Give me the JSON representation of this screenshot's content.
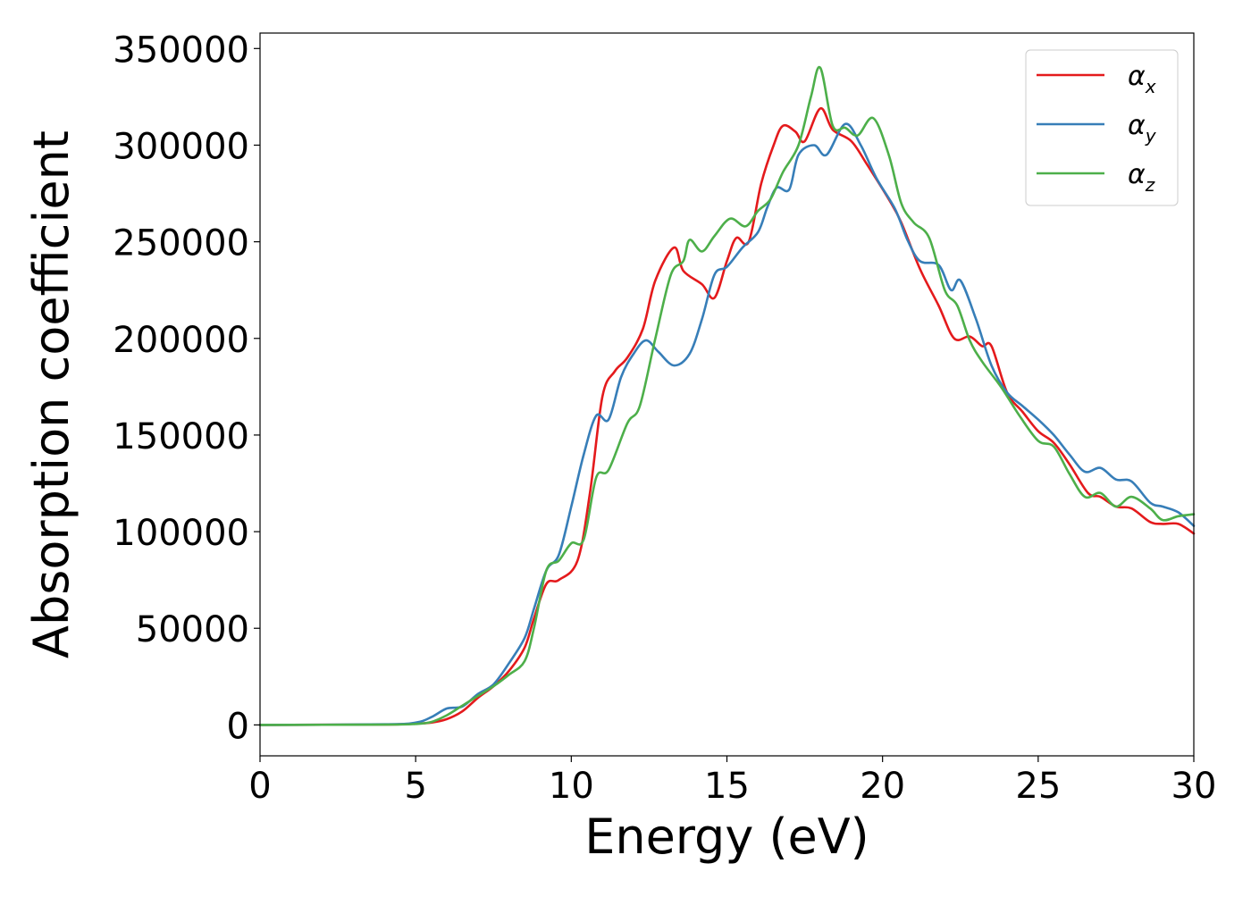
{
  "chart_data": {
    "type": "line",
    "title": "",
    "xlabel": "Energy (eV)",
    "ylabel": "Absorption coefficient",
    "xlim": [
      0,
      30
    ],
    "ylim": [
      -16000,
      358000
    ],
    "xticks": [
      0,
      5,
      10,
      15,
      20,
      25,
      30
    ],
    "xtick_labels": [
      "0",
      "5",
      "10",
      "15",
      "20",
      "25",
      "30"
    ],
    "yticks": [
      0,
      50000,
      100000,
      150000,
      200000,
      250000,
      300000,
      350000
    ],
    "ytick_labels": [
      "0",
      "50000",
      "100000",
      "150000",
      "200000",
      "250000",
      "300000",
      "350000"
    ],
    "grid": false,
    "legend_position": "top-right",
    "series": [
      {
        "name": "α_x",
        "label_main": "α",
        "label_sub": "x",
        "color": "#e41a1c",
        "points": [
          [
            0,
            0
          ],
          [
            4,
            200
          ],
          [
            5,
            700
          ],
          [
            5.5,
            1200
          ],
          [
            6,
            3000
          ],
          [
            6.5,
            7000
          ],
          [
            7,
            14000
          ],
          [
            7.5,
            20000
          ],
          [
            8,
            28000
          ],
          [
            8.5,
            40000
          ],
          [
            8.8,
            55000
          ],
          [
            9.2,
            73000
          ],
          [
            9.6,
            75000
          ],
          [
            10.2,
            85000
          ],
          [
            10.6,
            120000
          ],
          [
            11,
            170000
          ],
          [
            11.4,
            183000
          ],
          [
            11.8,
            190000
          ],
          [
            12.3,
            205000
          ],
          [
            12.7,
            230000
          ],
          [
            13.3,
            247000
          ],
          [
            13.6,
            235000
          ],
          [
            14.2,
            228000
          ],
          [
            14.6,
            221000
          ],
          [
            15,
            240000
          ],
          [
            15.3,
            252000
          ],
          [
            15.7,
            250000
          ],
          [
            16.1,
            280000
          ],
          [
            16.5,
            300000
          ],
          [
            16.8,
            310000
          ],
          [
            17.2,
            307000
          ],
          [
            17.5,
            302000
          ],
          [
            18,
            319000
          ],
          [
            18.4,
            308000
          ],
          [
            19,
            302000
          ],
          [
            19.5,
            290000
          ],
          [
            20.2,
            272000
          ],
          [
            20.6,
            260000
          ],
          [
            21.2,
            236000
          ],
          [
            21.8,
            217000
          ],
          [
            22.3,
            200000
          ],
          [
            22.8,
            201000
          ],
          [
            23.2,
            196000
          ],
          [
            23.5,
            196000
          ],
          [
            24,
            172000
          ],
          [
            24.5,
            162000
          ],
          [
            25,
            152000
          ],
          [
            25.5,
            146000
          ],
          [
            26,
            135000
          ],
          [
            26.6,
            120000
          ],
          [
            27,
            118000
          ],
          [
            27.5,
            113000
          ],
          [
            28,
            112000
          ],
          [
            28.6,
            105000
          ],
          [
            29,
            104000
          ],
          [
            29.5,
            104000
          ],
          [
            30,
            99000
          ]
        ]
      },
      {
        "name": "α_y",
        "label_main": "α",
        "label_sub": "y",
        "color": "#377eb8",
        "points": [
          [
            0,
            0
          ],
          [
            4,
            300
          ],
          [
            5,
            1200
          ],
          [
            5.5,
            4000
          ],
          [
            6,
            8500
          ],
          [
            6.5,
            9500
          ],
          [
            7,
            16000
          ],
          [
            7.5,
            21000
          ],
          [
            8,
            32000
          ],
          [
            8.5,
            45000
          ],
          [
            8.8,
            60000
          ],
          [
            9.2,
            80000
          ],
          [
            9.6,
            88000
          ],
          [
            10,
            113000
          ],
          [
            10.4,
            140000
          ],
          [
            10.8,
            160000
          ],
          [
            11.2,
            158000
          ],
          [
            11.6,
            180000
          ],
          [
            12,
            192000
          ],
          [
            12.4,
            199000
          ],
          [
            12.8,
            193000
          ],
          [
            13.3,
            186000
          ],
          [
            13.8,
            192000
          ],
          [
            14.2,
            210000
          ],
          [
            14.6,
            233000
          ],
          [
            15,
            237000
          ],
          [
            15.5,
            247000
          ],
          [
            16,
            255000
          ],
          [
            16.3,
            268000
          ],
          [
            16.6,
            278000
          ],
          [
            17,
            277000
          ],
          [
            17.3,
            295000
          ],
          [
            17.8,
            300000
          ],
          [
            18.2,
            295000
          ],
          [
            18.8,
            311000
          ],
          [
            19.3,
            300000
          ],
          [
            19.8,
            283000
          ],
          [
            20.4,
            267000
          ],
          [
            20.8,
            251000
          ],
          [
            21.2,
            240000
          ],
          [
            21.8,
            238000
          ],
          [
            22.2,
            225000
          ],
          [
            22.5,
            230000
          ],
          [
            23,
            210000
          ],
          [
            23.5,
            186000
          ],
          [
            24,
            172000
          ],
          [
            24.5,
            165000
          ],
          [
            25,
            158000
          ],
          [
            25.5,
            150000
          ],
          [
            26,
            140000
          ],
          [
            26.5,
            131000
          ],
          [
            27,
            133000
          ],
          [
            27.5,
            127000
          ],
          [
            28,
            126000
          ],
          [
            28.6,
            115000
          ],
          [
            29,
            113000
          ],
          [
            29.5,
            110000
          ],
          [
            30,
            103000
          ]
        ]
      },
      {
        "name": "α_z",
        "label_main": "α",
        "label_sub": "z",
        "color": "#4daf4a",
        "points": [
          [
            0,
            0
          ],
          [
            4,
            150
          ],
          [
            5,
            500
          ],
          [
            5.5,
            1500
          ],
          [
            6,
            5000
          ],
          [
            6.5,
            10000
          ],
          [
            7,
            15000
          ],
          [
            7.5,
            20000
          ],
          [
            8,
            26000
          ],
          [
            8.5,
            33000
          ],
          [
            8.8,
            50000
          ],
          [
            9.2,
            80000
          ],
          [
            9.6,
            85000
          ],
          [
            10,
            94000
          ],
          [
            10.4,
            96000
          ],
          [
            10.8,
            128000
          ],
          [
            11.2,
            132000
          ],
          [
            11.8,
            156000
          ],
          [
            12.2,
            165000
          ],
          [
            12.7,
            200000
          ],
          [
            13.2,
            233000
          ],
          [
            13.6,
            240000
          ],
          [
            13.8,
            251000
          ],
          [
            14.2,
            245000
          ],
          [
            14.6,
            253000
          ],
          [
            15.1,
            262000
          ],
          [
            15.6,
            258000
          ],
          [
            16,
            266000
          ],
          [
            16.4,
            272000
          ],
          [
            16.8,
            286000
          ],
          [
            17.3,
            300000
          ],
          [
            17.7,
            325000
          ],
          [
            18,
            340000
          ],
          [
            18.4,
            310000
          ],
          [
            18.8,
            309000
          ],
          [
            19.2,
            305000
          ],
          [
            19.7,
            314000
          ],
          [
            20.2,
            295000
          ],
          [
            20.6,
            270000
          ],
          [
            21,
            260000
          ],
          [
            21.5,
            252000
          ],
          [
            22,
            225000
          ],
          [
            22.4,
            217000
          ],
          [
            22.8,
            199000
          ],
          [
            23.2,
            188000
          ],
          [
            23.8,
            175000
          ],
          [
            24.4,
            160000
          ],
          [
            25,
            147000
          ],
          [
            25.5,
            144000
          ],
          [
            26,
            130000
          ],
          [
            26.5,
            118000
          ],
          [
            27,
            120000
          ],
          [
            27.5,
            113000
          ],
          [
            28,
            118000
          ],
          [
            28.6,
            112000
          ],
          [
            29,
            106000
          ],
          [
            29.5,
            108000
          ],
          [
            30,
            109000
          ]
        ]
      }
    ]
  }
}
